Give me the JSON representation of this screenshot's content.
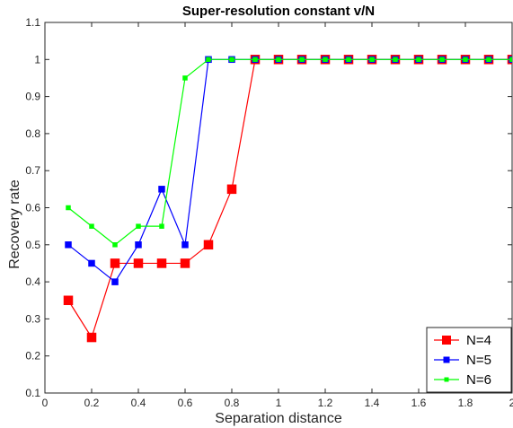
{
  "chart_data": {
    "type": "line",
    "title": "Super-resolution constant v/N",
    "xlabel": "Separation distance",
    "ylabel": "Recovery rate",
    "xlim": [
      0,
      2
    ],
    "ylim": [
      0.1,
      1.1
    ],
    "x_ticks": [
      "0",
      "0.2",
      "0.4",
      "0.6",
      "0.8",
      "1",
      "1.2",
      "1.4",
      "1.6",
      "1.8",
      "2"
    ],
    "y_ticks": [
      "0.1",
      "0.2",
      "0.3",
      "0.4",
      "0.5",
      "0.6",
      "0.7",
      "0.8",
      "0.9",
      "1",
      "1.1"
    ],
    "grid": false,
    "legend_position": "bottom-right",
    "x": [
      0.1,
      0.2,
      0.3,
      0.4,
      0.5,
      0.6,
      0.7,
      0.8,
      0.9,
      1.0,
      1.1,
      1.2,
      1.3,
      1.4,
      1.5,
      1.6,
      1.7,
      1.8,
      1.9,
      2.0
    ],
    "series": [
      {
        "name": "N=4",
        "color": "#ff0000",
        "marker": "large-square",
        "values": [
          0.35,
          0.25,
          0.45,
          0.45,
          0.45,
          0.45,
          0.5,
          0.65,
          1,
          1,
          1,
          1,
          1,
          1,
          1,
          1,
          1,
          1,
          1,
          1
        ]
      },
      {
        "name": "N=5",
        "color": "#0000ff",
        "marker": "medium-square",
        "values": [
          0.5,
          0.45,
          0.4,
          0.5,
          0.65,
          0.5,
          1,
          1,
          1,
          1,
          1,
          1,
          1,
          1,
          1,
          1,
          1,
          1,
          1,
          1
        ]
      },
      {
        "name": "N=6",
        "color": "#00ff00",
        "marker": "small-square",
        "values": [
          0.6,
          0.55,
          0.5,
          0.55,
          0.55,
          0.95,
          1,
          1,
          1,
          1,
          1,
          1,
          1,
          1,
          1,
          1,
          1,
          1,
          1,
          1
        ]
      }
    ]
  }
}
